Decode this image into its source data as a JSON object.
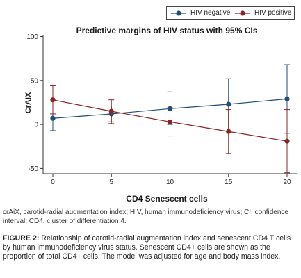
{
  "chart_data": {
    "type": "line",
    "title": "Predictive margins of HIV status with 95% CIs",
    "xlabel": "CD4 Senescent cells",
    "ylabel": "CrAIX",
    "x": [
      0,
      5,
      10,
      15,
      20
    ],
    "xticks": [
      "0",
      "5",
      "10",
      "15",
      "20"
    ],
    "yticks": [
      "-50",
      "0",
      "50",
      "100"
    ],
    "ytick_values": [
      -50,
      0,
      50,
      100
    ],
    "xlim": [
      0,
      20
    ],
    "ylim": [
      -56,
      102
    ],
    "grid": false,
    "legend_position": "top-right",
    "series": [
      {
        "name": "HIV negative",
        "color": "#1f4e79",
        "values": [
          7,
          12,
          18,
          23,
          29
        ],
        "ci_low": [
          -7,
          3,
          0,
          -5,
          -10
        ],
        "ci_high": [
          21,
          21,
          37,
          52,
          68
        ]
      },
      {
        "name": "HIV positive",
        "color": "#8b2323",
        "values": [
          28,
          15,
          3,
          -8,
          -19
        ],
        "ci_low": [
          12,
          1,
          -13,
          -33,
          -55
        ],
        "ci_high": [
          44,
          28,
          19,
          17,
          17
        ]
      }
    ]
  },
  "footnote": "crAiX, carotid-radial augmentation index; HIV, human immunodeficiency virus; CI, confidence interval; CD4, cluster of differentiation 4.",
  "caption": {
    "label": "FIGURE 2:",
    "text": " Relationship of carotid-radial augmentation index and senescent CD4 T cells by human immunodeficiency virus status. Senescent CD4+ cells are shown as the proportion of total CD4+ cells. The model was adjusted for age and body mass index."
  }
}
